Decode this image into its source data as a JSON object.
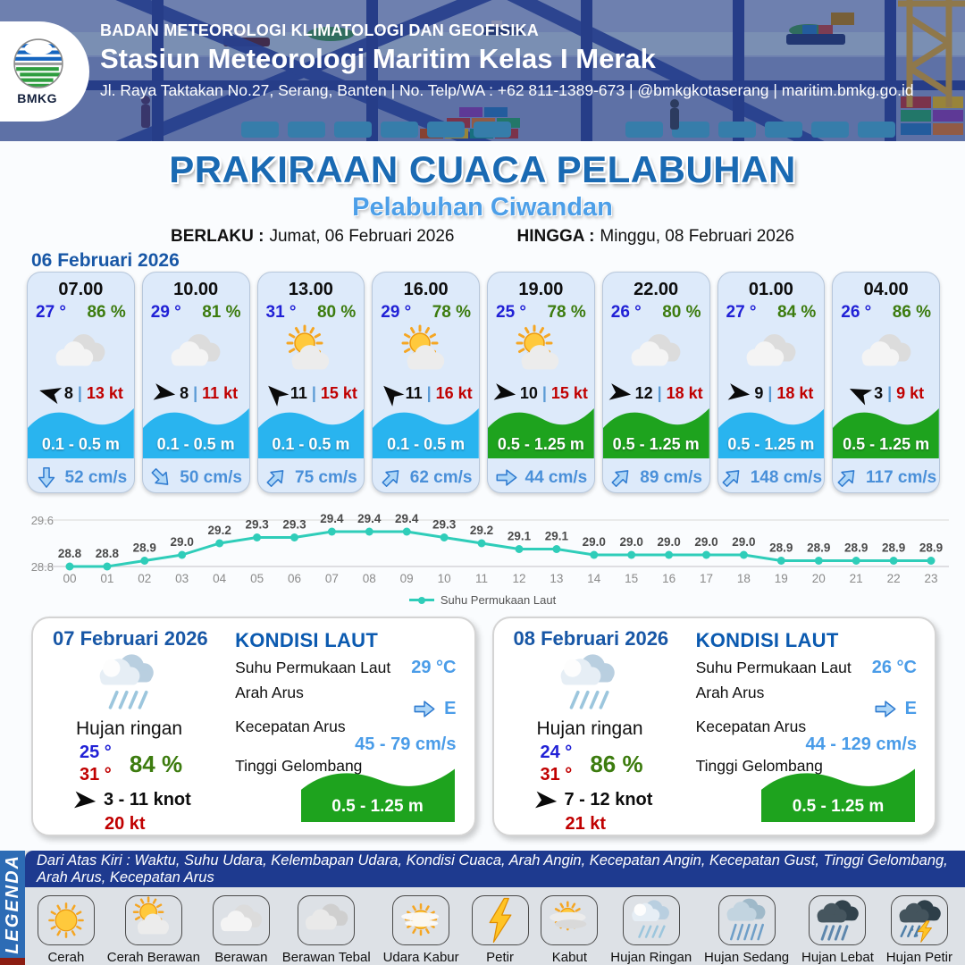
{
  "header": {
    "org": "BADAN METEOROLOGI KLIMATOLOGI DAN GEOFISIKA",
    "station": "Stasiun Meteorologi Maritim Kelas I Merak",
    "address": "Jl. Raya Taktakan No.27, Serang, Banten | No. Telp/WA : +62 811-1389-673 | @bmkgkotaserang | maritim.bmkg.go.id",
    "logo_text": "BMKG"
  },
  "title": {
    "main": "PRAKIRAAN CUACA PELABUHAN",
    "subtitle": "Pelabuhan Ciwandan",
    "valid_from_label": "BERLAKU :",
    "valid_from": "Jumat, 06 Februari 2026",
    "valid_to_label": "HINGGA :",
    "valid_to": "Minggu, 08 Februari 2026"
  },
  "forecast": {
    "date": "06 Februari 2026",
    "wind_sep": "|",
    "cards": [
      {
        "time": "07.00",
        "temp": "27 °",
        "humidity": "86 %",
        "weather_icon": "berawan",
        "wind_dir_deg": 195,
        "wind_speed": "8",
        "gust": "13 kt",
        "wave_height": "0.1 - 0.5 m",
        "wave_color": "#29b4ef",
        "current_dir_deg": 90,
        "current_speed": "52 cm/s"
      },
      {
        "time": "10.00",
        "temp": "29 °",
        "humidity": "81 %",
        "weather_icon": "berawan",
        "wind_dir_deg": 8,
        "wind_speed": "8",
        "gust": "11 kt",
        "wave_height": "0.1 - 0.5 m",
        "wave_color": "#29b4ef",
        "current_dir_deg": 45,
        "current_speed": "50 cm/s"
      },
      {
        "time": "13.00",
        "temp": "31 °",
        "humidity": "80 %",
        "weather_icon": "cerah-berawan",
        "wind_dir_deg": 225,
        "wind_speed": "11",
        "gust": "15 kt",
        "wave_height": "0.1 - 0.5 m",
        "wave_color": "#29b4ef",
        "current_dir_deg": -45,
        "current_speed": "75 cm/s"
      },
      {
        "time": "16.00",
        "temp": "29 °",
        "humidity": "78 %",
        "weather_icon": "cerah-berawan",
        "wind_dir_deg": 225,
        "wind_speed": "11",
        "gust": "16 kt",
        "wave_height": "0.1 - 0.5 m",
        "wave_color": "#29b4ef",
        "current_dir_deg": -45,
        "current_speed": "62 cm/s"
      },
      {
        "time": "19.00",
        "temp": "25 °",
        "humidity": "78 %",
        "weather_icon": "cerah-berawan",
        "wind_dir_deg": 8,
        "wind_speed": "10",
        "gust": "15 kt",
        "wave_height": "0.5 - 1.25 m",
        "wave_color": "#1ea31e",
        "current_dir_deg": 0,
        "current_speed": "44 cm/s"
      },
      {
        "time": "22.00",
        "temp": "26 °",
        "humidity": "80 %",
        "weather_icon": "berawan",
        "wind_dir_deg": 8,
        "wind_speed": "12",
        "gust": "18 kt",
        "wave_height": "0.5 - 1.25 m",
        "wave_color": "#1ea31e",
        "current_dir_deg": -45,
        "current_speed": "89 cm/s"
      },
      {
        "time": "01.00",
        "temp": "27 °",
        "humidity": "84 %",
        "weather_icon": "berawan",
        "wind_dir_deg": 8,
        "wind_speed": "9",
        "gust": "18 kt",
        "wave_height": "0.5 - 1.25 m",
        "wave_color": "#29b4ef",
        "current_dir_deg": -45,
        "current_speed": "148 cm/s"
      },
      {
        "time": "04.00",
        "temp": "26 °",
        "humidity": "86 %",
        "weather_icon": "berawan",
        "wind_dir_deg": 205,
        "wind_speed": "3",
        "gust": "9 kt",
        "wave_height": "0.5 - 1.25 m",
        "wave_color": "#1ea31e",
        "current_dir_deg": -45,
        "current_speed": "117 cm/s"
      }
    ]
  },
  "chart_data": {
    "type": "line",
    "x": [
      "00",
      "01",
      "02",
      "03",
      "04",
      "05",
      "06",
      "07",
      "08",
      "09",
      "10",
      "11",
      "12",
      "13",
      "14",
      "15",
      "16",
      "17",
      "18",
      "19",
      "20",
      "21",
      "22",
      "23"
    ],
    "series": [
      {
        "name": "Suhu Permukaan Laut",
        "values": [
          28.8,
          28.8,
          28.9,
          29.0,
          29.2,
          29.3,
          29.3,
          29.4,
          29.4,
          29.4,
          29.3,
          29.2,
          29.1,
          29.1,
          29.0,
          29.0,
          29.0,
          29.0,
          29.0,
          28.9,
          28.9,
          28.9,
          28.9,
          28.9
        ]
      }
    ],
    "ylim": [
      28.8,
      29.6
    ],
    "yticks": [
      28.8,
      29.6
    ],
    "line_color": "#2fcdb9",
    "point_labels": true,
    "grid": true,
    "legend_position": "bottom"
  },
  "daily": {
    "sea_labels": {
      "title": "KONDISI LAUT",
      "sst": "Suhu Permukaan Laut",
      "current_dir": "Arah Arus",
      "current_speed": "Kecepatan Arus",
      "wave": "Tinggi Gelombang"
    },
    "cards": [
      {
        "date": "07 Februari 2026",
        "weather_icon": "hujan-ringan",
        "condition": "Hujan ringan",
        "temp_min": "25 °",
        "temp_max": "31 °",
        "humidity": "84 %",
        "wind_dir_deg": 5,
        "wind_range": "3 - 11 knot",
        "gust": "20 kt",
        "sst": "29 °C",
        "current_dir_deg": 0,
        "current_dir": "E",
        "current_range": "45 - 79 cm/s",
        "wave_height": "0.5 - 1.25 m",
        "wave_color": "#1ea31e"
      },
      {
        "date": "08 Februari 2026",
        "weather_icon": "hujan-ringan",
        "condition": "Hujan ringan",
        "temp_min": "24 °",
        "temp_max": "31 °",
        "humidity": "86 %",
        "wind_dir_deg": 5,
        "wind_range": "7 - 12 knot",
        "gust": "21 kt",
        "sst": "26 °C",
        "current_dir_deg": 0,
        "current_dir": "E",
        "current_range": "44 - 129 cm/s",
        "wave_height": "0.5 - 1.25 m",
        "wave_color": "#1ea31e"
      }
    ]
  },
  "legend": {
    "sidebar": "LEGENDA",
    "note": "Dari Atas Kiri : Waktu, Suhu Udara, Kelembapan Udara, Kondisi Cuaca, Arah Angin, Kecepatan Angin, Kecepatan Gust, Tinggi Gelombang, Arah Arus, Kecepatan Arus",
    "items": [
      {
        "icon": "cerah",
        "label": "Cerah"
      },
      {
        "icon": "cerah-berawan",
        "label": "Cerah Berawan"
      },
      {
        "icon": "berawan",
        "label": "Berawan"
      },
      {
        "icon": "berawan-tebal",
        "label": "Berawan Tebal"
      },
      {
        "icon": "udara-kabur",
        "label": "Udara Kabur"
      },
      {
        "icon": "petir",
        "label": "Petir"
      },
      {
        "icon": "kabut",
        "label": "Kabut"
      },
      {
        "icon": "hujan-ringan",
        "label": "Hujan Ringan"
      },
      {
        "icon": "hujan-sedang",
        "label": "Hujan Sedang"
      },
      {
        "icon": "hujan-lebat",
        "label": "Hujan Lebat"
      },
      {
        "icon": "hujan-petir",
        "label": "Hujan Petir"
      }
    ]
  }
}
